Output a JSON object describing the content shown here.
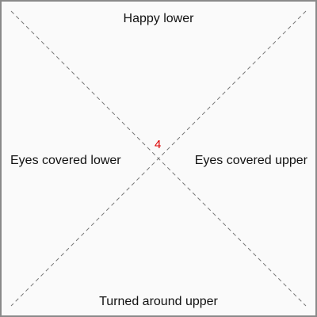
{
  "labels": {
    "top": "Happy lower",
    "bottom": "Turned around upper",
    "left": "Eyes covered lower",
    "right": "Eyes covered upper"
  },
  "center": {
    "value": "4",
    "color": "#dd0000"
  },
  "colors": {
    "line": "#777777",
    "frame": "#8a8a8a",
    "background": "#fafafa",
    "text": "#111111"
  }
}
